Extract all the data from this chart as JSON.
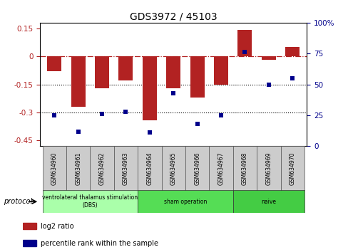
{
  "title": "GDS3972 / 45103",
  "samples": [
    "GSM634960",
    "GSM634961",
    "GSM634962",
    "GSM634963",
    "GSM634964",
    "GSM634965",
    "GSM634966",
    "GSM634967",
    "GSM634968",
    "GSM634969",
    "GSM634970"
  ],
  "log2_ratio": [
    -0.08,
    -0.27,
    -0.17,
    -0.13,
    -0.34,
    -0.17,
    -0.22,
    -0.15,
    0.14,
    -0.02,
    0.05
  ],
  "percentile_rank": [
    25,
    12,
    26,
    28,
    11,
    43,
    18,
    25,
    76,
    50,
    55
  ],
  "ylim_left": [
    -0.48,
    0.18
  ],
  "ylim_right": [
    0,
    100
  ],
  "yticks_left": [
    0.15,
    0.0,
    -0.15,
    -0.3,
    -0.45
  ],
  "ytick_labels_left": [
    "0.15",
    "0",
    "-0.15",
    "-0.3",
    "-0.45"
  ],
  "yticks_right": [
    100,
    75,
    50,
    25,
    0
  ],
  "ytick_labels_right": [
    "100%",
    "75",
    "50",
    "25",
    "0"
  ],
  "hlines": [
    -0.15,
    -0.3
  ],
  "bar_color": "#B22222",
  "dot_color": "#00008B",
  "dash_color": "#B22222",
  "groups": [
    {
      "label": "ventrolateral thalamus stimulation\n(DBS)",
      "start": 0,
      "end": 3,
      "color": "#aaffaa"
    },
    {
      "label": "sham operation",
      "start": 4,
      "end": 7,
      "color": "#55dd55"
    },
    {
      "label": "naive",
      "start": 8,
      "end": 10,
      "color": "#44cc44"
    }
  ],
  "sample_box_color": "#cccccc",
  "protocol_label": "protocol",
  "legend_entries": [
    {
      "label": "log2 ratio",
      "color": "#B22222"
    },
    {
      "label": "percentile rank within the sample",
      "color": "#00008B"
    }
  ]
}
